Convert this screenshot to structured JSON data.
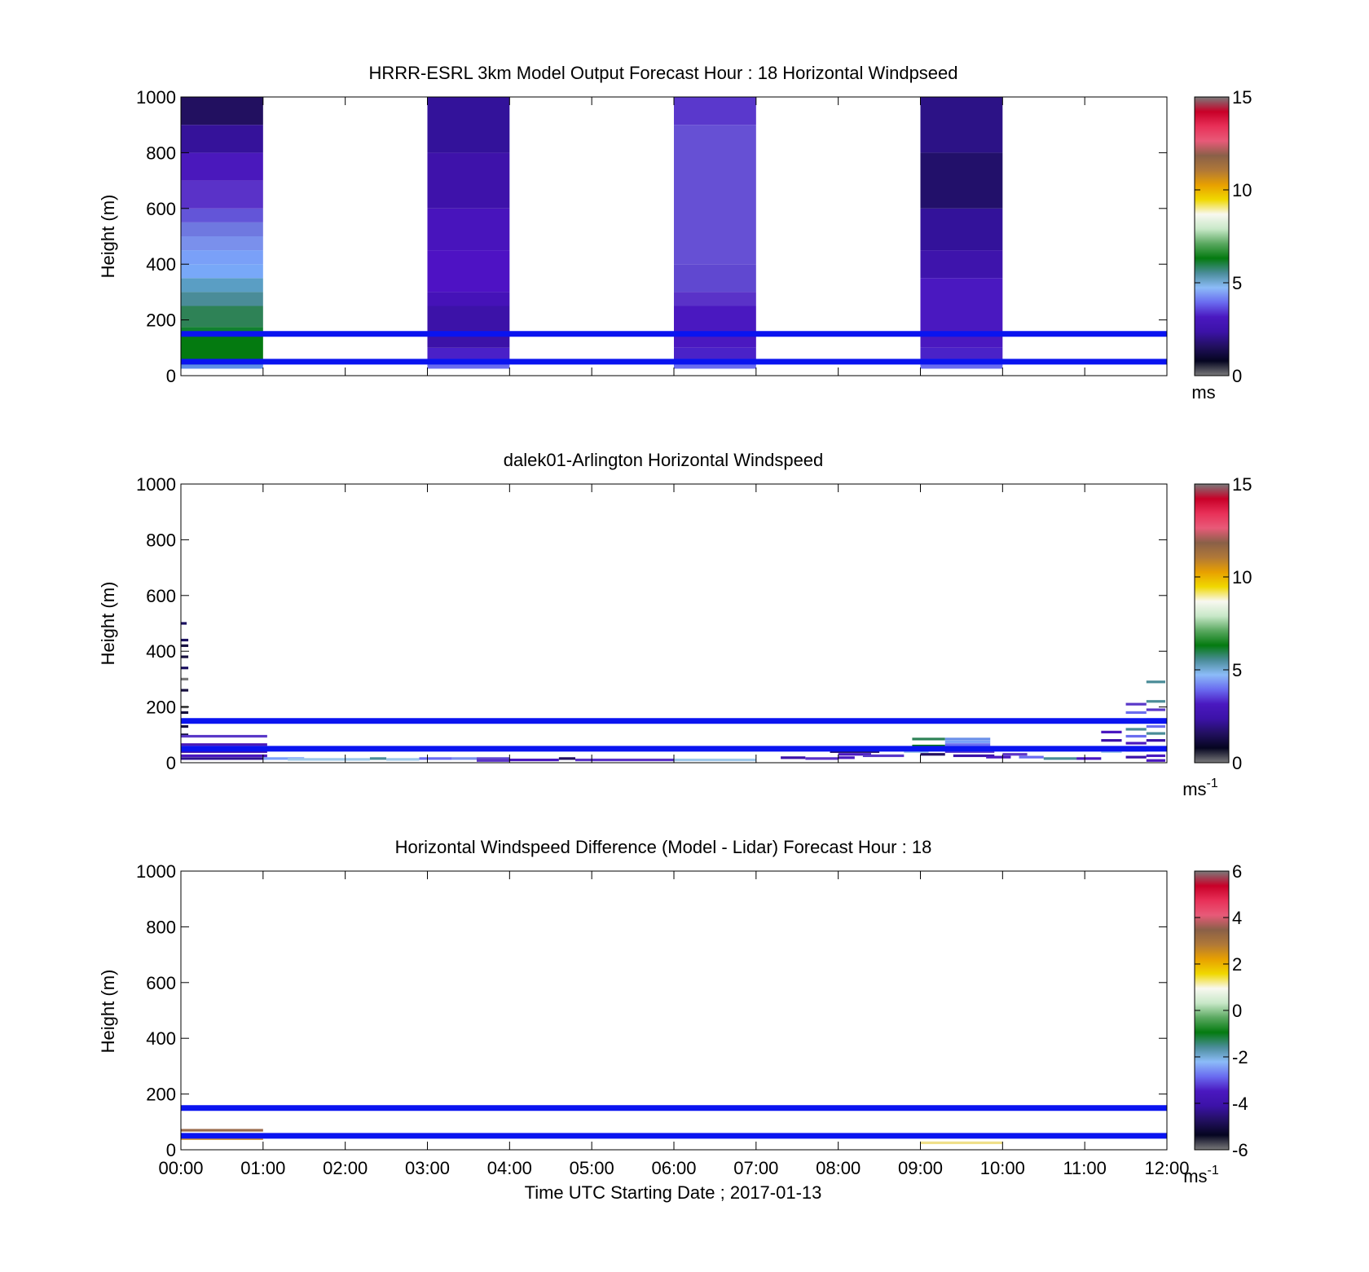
{
  "xaxis": {
    "ticks": [
      "00:00",
      "01:00",
      "02:00",
      "03:00",
      "04:00",
      "05:00",
      "06:00",
      "07:00",
      "08:00",
      "09:00",
      "10:00",
      "11:00",
      "12:00"
    ],
    "label": "Time UTC  Starting Date ; 2017-01-13",
    "range_hours": [
      0,
      12
    ]
  },
  "chart_data": [
    {
      "type": "heatmap",
      "title": "HRRR-ESRL 3km Model Output   Forecast Hour : 18 Horizontal Windpseed",
      "ylabel": "Height (m)",
      "ylim": [
        0,
        1000
      ],
      "yticks": [
        "0",
        "200",
        "400",
        "600",
        "800",
        "1000"
      ],
      "colorbar": {
        "range": [
          0,
          15
        ],
        "ticks": [
          "0",
          "5",
          "10",
          "15"
        ],
        "unit": "ms",
        "unit_sup": ""
      },
      "reference_lines_m": [
        50,
        150
      ],
      "columns": [
        {
          "start_h": 0,
          "end_h": 1,
          "cells": [
            {
              "z": [
                25,
                40
              ],
              "color": "#5e8ee8"
            },
            {
              "z": [
                40,
                55
              ],
              "color": "#2f9a48"
            },
            {
              "z": [
                55,
                150
              ],
              "color": "#047a10"
            },
            {
              "z": [
                150,
                175
              ],
              "color": "#118030"
            },
            {
              "z": [
                175,
                250
              ],
              "color": "#2e8256"
            },
            {
              "z": [
                250,
                300
              ],
              "color": "#4a8c98"
            },
            {
              "z": [
                300,
                350
              ],
              "color": "#5a9ec4"
            },
            {
              "z": [
                350,
                400
              ],
              "color": "#78a8f8"
            },
            {
              "z": [
                400,
                450
              ],
              "color": "#7aa0f8"
            },
            {
              "z": [
                450,
                500
              ],
              "color": "#7a90ec"
            },
            {
              "z": [
                500,
                550
              ],
              "color": "#6f78e0"
            },
            {
              "z": [
                550,
                600
              ],
              "color": "#6355d8"
            },
            {
              "z": [
                600,
                700
              ],
              "color": "#5a32c8"
            },
            {
              "z": [
                700,
                800
              ],
              "color": "#4a18bc"
            },
            {
              "z": [
                800,
                900
              ],
              "color": "#35129a"
            },
            {
              "z": [
                900,
                1000
              ],
              "color": "#221060"
            }
          ]
        },
        {
          "start_h": 3,
          "end_h": 4,
          "cells": [
            {
              "z": [
                25,
                60
              ],
              "color": "#6a6cf0"
            },
            {
              "z": [
                60,
                100
              ],
              "color": "#4a20c8"
            },
            {
              "z": [
                100,
                250
              ],
              "color": "#3c12a8"
            },
            {
              "z": [
                250,
                300
              ],
              "color": "#4512b8"
            },
            {
              "z": [
                300,
                450
              ],
              "color": "#4e12c4"
            },
            {
              "z": [
                450,
                600
              ],
              "color": "#4814bc"
            },
            {
              "z": [
                600,
                800
              ],
              "color": "#3e12aa"
            },
            {
              "z": [
                800,
                1000
              ],
              "color": "#33129a"
            }
          ]
        },
        {
          "start_h": 6,
          "end_h": 7,
          "cells": [
            {
              "z": [
                25,
                60
              ],
              "color": "#6a6cf0"
            },
            {
              "z": [
                60,
                100
              ],
              "color": "#4a22c8"
            },
            {
              "z": [
                100,
                250
              ],
              "color": "#4a18c0"
            },
            {
              "z": [
                250,
                300
              ],
              "color": "#5a32c8"
            },
            {
              "z": [
                300,
                400
              ],
              "color": "#6048d0"
            },
            {
              "z": [
                400,
                900
              ],
              "color": "#6650d4"
            },
            {
              "z": [
                900,
                1000
              ],
              "color": "#5a38cc"
            }
          ]
        },
        {
          "start_h": 9,
          "end_h": 10,
          "cells": [
            {
              "z": [
                25,
                60
              ],
              "color": "#6a6cf0"
            },
            {
              "z": [
                60,
                100
              ],
              "color": "#4a22c8"
            },
            {
              "z": [
                100,
                350
              ],
              "color": "#4a18c0"
            },
            {
              "z": [
                350,
                450
              ],
              "color": "#3e14ac"
            },
            {
              "z": [
                450,
                600
              ],
              "color": "#33129a"
            },
            {
              "z": [
                600,
                800
              ],
              "color": "#22106a"
            },
            {
              "z": [
                800,
                1000
              ],
              "color": "#2c1286"
            }
          ]
        }
      ]
    },
    {
      "type": "heatmap",
      "title": "dalek01-Arlington  Horizontal Windspeed",
      "ylabel": "Height (m)",
      "ylim": [
        0,
        1000
      ],
      "yticks": [
        "0",
        "200",
        "400",
        "600",
        "800",
        "1000"
      ],
      "colorbar": {
        "range": [
          0,
          15
        ],
        "ticks": [
          "0",
          "5",
          "10",
          "15"
        ],
        "unit": "ms",
        "unit_sup": "-1"
      },
      "reference_lines_m": [
        50,
        150
      ],
      "segments": [
        {
          "t": [
            0,
            0.07
          ],
          "z": 500,
          "color": "#1a1060"
        },
        {
          "t": [
            0,
            0.09
          ],
          "z": 440,
          "color": "#1a1060"
        },
        {
          "t": [
            0,
            0.09
          ],
          "z": 420,
          "color": "#161040"
        },
        {
          "t": [
            0,
            0.09
          ],
          "z": 380,
          "color": "#161040"
        },
        {
          "t": [
            0,
            0.09
          ],
          "z": 340,
          "color": "#1a1060"
        },
        {
          "t": [
            0,
            0.09
          ],
          "z": 300,
          "color": "#7a7a7a"
        },
        {
          "t": [
            0,
            0.09
          ],
          "z": 260,
          "color": "#161040"
        },
        {
          "t": [
            0,
            0.09
          ],
          "z": 200,
          "color": "#7a7a7a"
        },
        {
          "t": [
            0,
            0.09
          ],
          "z": 180,
          "color": "#161040"
        },
        {
          "t": [
            0,
            0.09
          ],
          "z": 130,
          "color": "#161040"
        },
        {
          "t": [
            0,
            0.09
          ],
          "z": 100,
          "color": "#161040"
        },
        {
          "t": [
            0,
            1.05
          ],
          "z": 95,
          "color": "#5a38c8"
        },
        {
          "t": [
            0,
            1.05
          ],
          "z": 65,
          "color": "#4a18b8"
        },
        {
          "t": [
            0,
            1.05
          ],
          "z": 40,
          "color": "#3c12a8"
        },
        {
          "t": [
            0,
            1.05
          ],
          "z": 25,
          "color": "#4a18c0"
        },
        {
          "t": [
            0,
            1.05
          ],
          "z": 15,
          "color": "#2e1490"
        },
        {
          "t": [
            1.0,
            1.5
          ],
          "z": 15,
          "color": "#7aa0f8"
        },
        {
          "t": [
            1.3,
            2.3
          ],
          "z": 12,
          "color": "#9ec8ea"
        },
        {
          "t": [
            2.3,
            2.5
          ],
          "z": 15,
          "color": "#4a8c98"
        },
        {
          "t": [
            2.5,
            2.9
          ],
          "z": 12,
          "color": "#9ec8ea"
        },
        {
          "t": [
            2.9,
            3.3
          ],
          "z": 15,
          "color": "#6a6cf0"
        },
        {
          "t": [
            3.3,
            3.6
          ],
          "z": 15,
          "color": "#7a90ec"
        },
        {
          "t": [
            3.6,
            4.0
          ],
          "z": 15,
          "color": "#6048d0"
        },
        {
          "t": [
            3.6,
            4.0
          ],
          "z": 8,
          "color": "#5a32c8"
        },
        {
          "t": [
            4.0,
            4.6
          ],
          "z": 10,
          "color": "#4a18c0"
        },
        {
          "t": [
            4.6,
            4.8
          ],
          "z": 15,
          "color": "#221060"
        },
        {
          "t": [
            4.8,
            6.0
          ],
          "z": 10,
          "color": "#5a32c8"
        },
        {
          "t": [
            6.0,
            7.0
          ],
          "z": 10,
          "color": "#9ec8ea"
        },
        {
          "t": [
            7.3,
            7.6
          ],
          "z": 18,
          "color": "#3c12a8"
        },
        {
          "t": [
            7.6,
            8.0
          ],
          "z": 15,
          "color": "#5a32c8"
        },
        {
          "t": [
            8.0,
            8.2
          ],
          "z": 18,
          "color": "#4a18c0"
        },
        {
          "t": [
            7.9,
            8.5
          ],
          "z": 40,
          "color": "#221060"
        },
        {
          "t": [
            8.0,
            8.4
          ],
          "z": 30,
          "color": "#4a18c0"
        },
        {
          "t": [
            8.3,
            8.8
          ],
          "z": 25,
          "color": "#5a38c8"
        },
        {
          "t": [
            8.5,
            8.9
          ],
          "z": 55,
          "color": "#2e8256"
        },
        {
          "t": [
            8.8,
            9.1
          ],
          "z": 40,
          "color": "#9ec8ea"
        },
        {
          "t": [
            8.9,
            9.3
          ],
          "z": 85,
          "color": "#2e8256"
        },
        {
          "t": [
            8.9,
            9.3
          ],
          "z": 60,
          "color": "#047a10"
        },
        {
          "t": [
            9.0,
            9.3
          ],
          "z": 30,
          "color": "#221060"
        },
        {
          "t": [
            9.3,
            9.85
          ],
          "z": 85,
          "color": "#6a90e8"
        },
        {
          "t": [
            9.3,
            9.85
          ],
          "z": 75,
          "color": "#7aa0f8"
        },
        {
          "t": [
            9.3,
            9.85
          ],
          "z": 65,
          "color": "#6a6cf0"
        },
        {
          "t": [
            9.4,
            9.9
          ],
          "z": 55,
          "color": "#047a10"
        },
        {
          "t": [
            9.3,
            9.9
          ],
          "z": 40,
          "color": "#5a38c8"
        },
        {
          "t": [
            9.4,
            9.9
          ],
          "z": 25,
          "color": "#3c12a8"
        },
        {
          "t": [
            9.8,
            10.1
          ],
          "z": 20,
          "color": "#4a18c0"
        },
        {
          "t": [
            10.0,
            10.3
          ],
          "z": 30,
          "color": "#5a32c8"
        },
        {
          "t": [
            10.2,
            10.5
          ],
          "z": 20,
          "color": "#6a6cf0"
        },
        {
          "t": [
            10.5,
            10.9
          ],
          "z": 15,
          "color": "#4a8c98"
        },
        {
          "t": [
            10.9,
            11.2
          ],
          "z": 15,
          "color": "#4a18c0"
        },
        {
          "t": [
            11.2,
            11.45
          ],
          "z": 110,
          "color": "#4a18c0"
        },
        {
          "t": [
            11.2,
            11.45
          ],
          "z": 80,
          "color": "#3c12a8"
        },
        {
          "t": [
            11.2,
            11.45
          ],
          "z": 40,
          "color": "#9ec8ea"
        },
        {
          "t": [
            11.5,
            11.75
          ],
          "z": 210,
          "color": "#5a38c8"
        },
        {
          "t": [
            11.5,
            11.75
          ],
          "z": 180,
          "color": "#6a6cf0"
        },
        {
          "t": [
            11.5,
            11.75
          ],
          "z": 150,
          "color": "#7a90ec"
        },
        {
          "t": [
            11.5,
            11.75
          ],
          "z": 120,
          "color": "#4a8c98"
        },
        {
          "t": [
            11.5,
            11.75
          ],
          "z": 95,
          "color": "#6a6cf0"
        },
        {
          "t": [
            11.5,
            11.75
          ],
          "z": 70,
          "color": "#4a18c0"
        },
        {
          "t": [
            11.5,
            11.75
          ],
          "z": 45,
          "color": "#221060"
        },
        {
          "t": [
            11.5,
            11.75
          ],
          "z": 20,
          "color": "#3c12a8"
        },
        {
          "t": [
            11.75,
            11.98
          ],
          "z": 290,
          "color": "#4a8c98"
        },
        {
          "t": [
            11.75,
            11.98
          ],
          "z": 220,
          "color": "#4a8c98"
        },
        {
          "t": [
            11.75,
            11.98
          ],
          "z": 190,
          "color": "#5a38c8"
        },
        {
          "t": [
            11.75,
            11.98
          ],
          "z": 155,
          "color": "#7a90ec"
        },
        {
          "t": [
            11.75,
            11.98
          ],
          "z": 130,
          "color": "#6a6cf0"
        },
        {
          "t": [
            11.75,
            11.98
          ],
          "z": 105,
          "color": "#4a8c98"
        },
        {
          "t": [
            11.75,
            11.98
          ],
          "z": 80,
          "color": "#3c12a8"
        },
        {
          "t": [
            11.75,
            11.98
          ],
          "z": 55,
          "color": "#4a18c0"
        },
        {
          "t": [
            11.75,
            11.98
          ],
          "z": 25,
          "color": "#4a18c0"
        },
        {
          "t": [
            11.75,
            11.98
          ],
          "z": 8,
          "color": "#4a18c0"
        }
      ]
    },
    {
      "type": "heatmap",
      "title": "Horizontal Windspeed Difference (Model - Lidar) Forecast Hour : 18",
      "ylabel": "Height (m)",
      "ylim": [
        0,
        1000
      ],
      "yticks": [
        "0",
        "200",
        "400",
        "600",
        "800",
        "1000"
      ],
      "colorbar": {
        "range": [
          -6,
          6
        ],
        "ticks": [
          "-6",
          "-4",
          "-2",
          "0",
          "2",
          "4",
          "6"
        ],
        "unit": "ms",
        "unit_sup": "-1"
      },
      "reference_lines_m": [
        50,
        150
      ],
      "segments": [
        {
          "t": [
            0,
            1.0
          ],
          "z": 70,
          "color": "#9a6a4a"
        },
        {
          "t": [
            0,
            1.0
          ],
          "z": 40,
          "color": "#d89a3a"
        },
        {
          "t": [
            9.0,
            10.0
          ],
          "z": 25,
          "color": "#f0e08a"
        }
      ]
    }
  ],
  "colors": {
    "reference_line": "#0a14f0",
    "speed_colormap": [
      "#7a7a7a",
      "#050520",
      "#221060",
      "#3c12a8",
      "#4a18c0",
      "#6a6cf0",
      "#8cbcf8",
      "#4a8c98",
      "#047a10",
      "#5aa860",
      "#c8e8c8",
      "#f8f8f0",
      "#f0d800",
      "#e8a000",
      "#b07838",
      "#8a6048",
      "#e85a78",
      "#e83058",
      "#c80028",
      "#7a7a7a"
    ]
  }
}
